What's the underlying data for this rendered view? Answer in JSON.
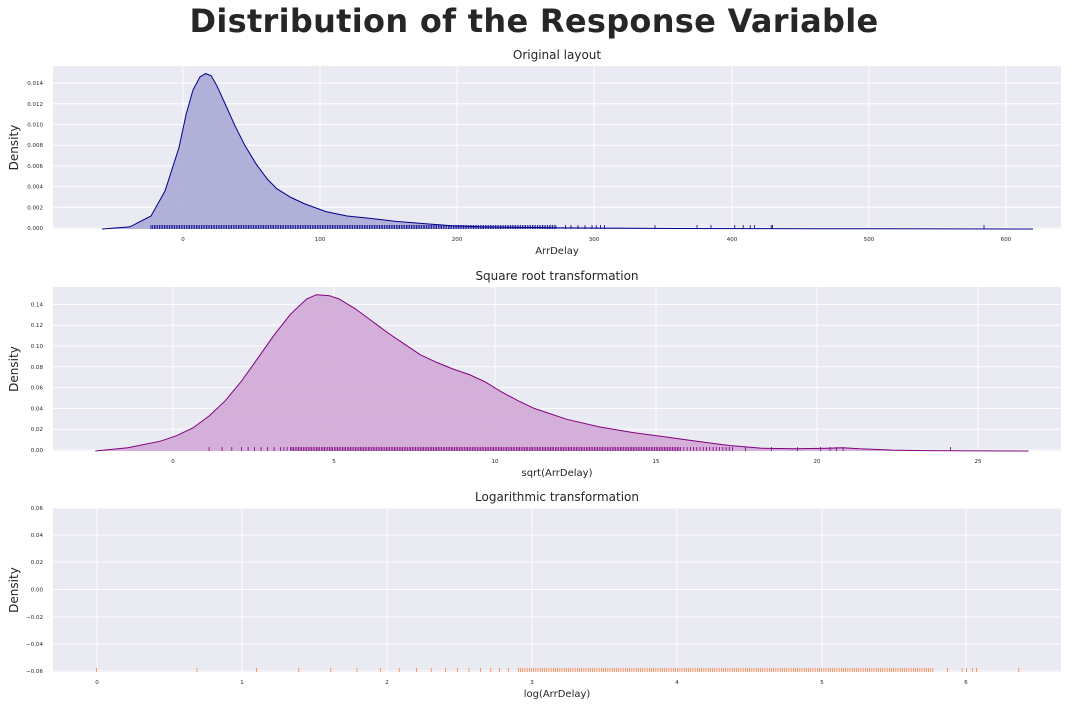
{
  "suptitle": "Distribution of the Response Variable",
  "chart_data": [
    {
      "type": "area",
      "kind": "kde",
      "title": "Original layout",
      "xlabel": "ArrDelay",
      "ylabel": "Density",
      "xlim": [
        -95,
        625
      ],
      "ylim": [
        0,
        0.015
      ],
      "xticks": [
        "0",
        "100",
        "200",
        "300",
        "400",
        "500",
        "600"
      ],
      "yticks": [
        "0.000",
        "0.002",
        "0.004",
        "0.006",
        "0.008",
        "0.010",
        "0.012",
        "0.014"
      ],
      "grid": true,
      "color": "#00008b",
      "fill": "#aaaad6",
      "series": [
        {
          "x": [
            -60,
            -40,
            -25,
            -15,
            -5,
            0,
            5,
            10,
            14,
            18,
            22,
            28,
            35,
            42,
            50,
            58,
            65,
            75,
            85,
            100,
            115,
            130,
            150,
            170,
            190,
            210,
            240,
            270,
            300,
            350,
            400,
            450,
            500,
            550,
            605
          ],
          "y": [
            0,
            0.0002,
            0.0012,
            0.0035,
            0.0075,
            0.0105,
            0.0128,
            0.014,
            0.0143,
            0.0141,
            0.0132,
            0.0115,
            0.0095,
            0.0077,
            0.006,
            0.0046,
            0.0037,
            0.0029,
            0.0023,
            0.0016,
            0.0012,
            0.001,
            0.0007,
            0.0005,
            0.0003,
            0.0002,
            0.00015,
            0.0001,
            8e-05,
            5e-05,
            4e-05,
            3e-05,
            2e-05,
            1e-05,
            0
          ]
        }
      ],
      "rug": {
        "color": "#00008b",
        "ranges": [
          [
            -25,
            265,
            1.2
          ]
        ],
        "points": [
          271,
          275,
          280,
          285,
          290,
          293,
          296,
          299,
          335,
          365,
          375,
          392,
          398,
          403,
          406,
          418,
          419,
          570
        ]
      }
    },
    {
      "type": "area",
      "kind": "kde",
      "title": "Square root transformation",
      "xlabel": "sqrt(ArrDelay)",
      "ylabel": "Density",
      "xlim": [
        -3.8,
        27.2
      ],
      "ylim": [
        0,
        0.15
      ],
      "xticks": [
        "0",
        "5",
        "10",
        "15",
        "20",
        "25"
      ],
      "yticks": [
        "0.00",
        "0.02",
        "0.04",
        "0.06",
        "0.08",
        "0.10",
        "0.12",
        "0.14"
      ],
      "grid": true,
      "color": "#800080",
      "fill": "#d0a8d6",
      "series": [
        {
          "x": [
            -2.5,
            -1.5,
            -0.5,
            0,
            0.5,
            1,
            1.5,
            2,
            2.5,
            3,
            3.5,
            4,
            4.3,
            4.7,
            5,
            5.5,
            6,
            6.5,
            7,
            7.5,
            8,
            8.5,
            9,
            9.5,
            10,
            10.5,
            11,
            12,
            13,
            14,
            15,
            16,
            17,
            18,
            19,
            20,
            20.5,
            21,
            22,
            23,
            24,
            26.2
          ],
          "y": [
            0,
            0.003,
            0.009,
            0.014,
            0.021,
            0.032,
            0.046,
            0.064,
            0.085,
            0.106,
            0.125,
            0.139,
            0.143,
            0.142,
            0.139,
            0.13,
            0.119,
            0.108,
            0.098,
            0.088,
            0.081,
            0.075,
            0.07,
            0.063,
            0.054,
            0.046,
            0.039,
            0.029,
            0.022,
            0.017,
            0.013,
            0.009,
            0.005,
            0.0025,
            0.002,
            0.0025,
            0.003,
            0.002,
            0.0008,
            0.0004,
            0.0002,
            0
          ]
        }
      ],
      "rug": {
        "color": "#800080",
        "ranges": [
          [
            3.5,
            15.5,
            0.05
          ],
          [
            15.5,
            17.2,
            0.1
          ]
        ],
        "points": [
          1.0,
          1.4,
          1.7,
          2.0,
          2.2,
          2.4,
          2.6,
          2.8,
          3.0,
          3.2,
          3.3,
          3.4,
          17.5,
          18.3,
          19.1,
          19.8,
          20.1,
          20.3,
          20.5,
          23.8
        ]
      }
    },
    {
      "type": "area",
      "kind": "kde",
      "title": "Logarithmic transformation",
      "xlabel": "log(ArrDelay)",
      "ylabel": "Density",
      "xlim": [
        -0.3,
        6.63
      ],
      "ylim": [
        -0.06,
        0.06
      ],
      "xticks": [
        "0",
        "1",
        "2",
        "3",
        "4",
        "5",
        "6"
      ],
      "yticks": [
        "−0.06",
        "−0.04",
        "−0.02",
        "0.00",
        "0.02",
        "0.04",
        "0.06"
      ],
      "grid": true,
      "color": "#ff7f3f",
      "fill": "none",
      "series": [],
      "rug": {
        "color": "#ff7f3f",
        "ranges": [
          [
            2.9,
            5.75,
            0.015
          ]
        ],
        "points": [
          0.0,
          0.69,
          1.1,
          1.39,
          1.61,
          1.79,
          1.95,
          2.08,
          2.2,
          2.3,
          2.4,
          2.48,
          2.56,
          2.64,
          2.71,
          2.77,
          2.83,
          5.85,
          5.95,
          5.98,
          6.02,
          6.05,
          6.34
        ]
      }
    }
  ]
}
